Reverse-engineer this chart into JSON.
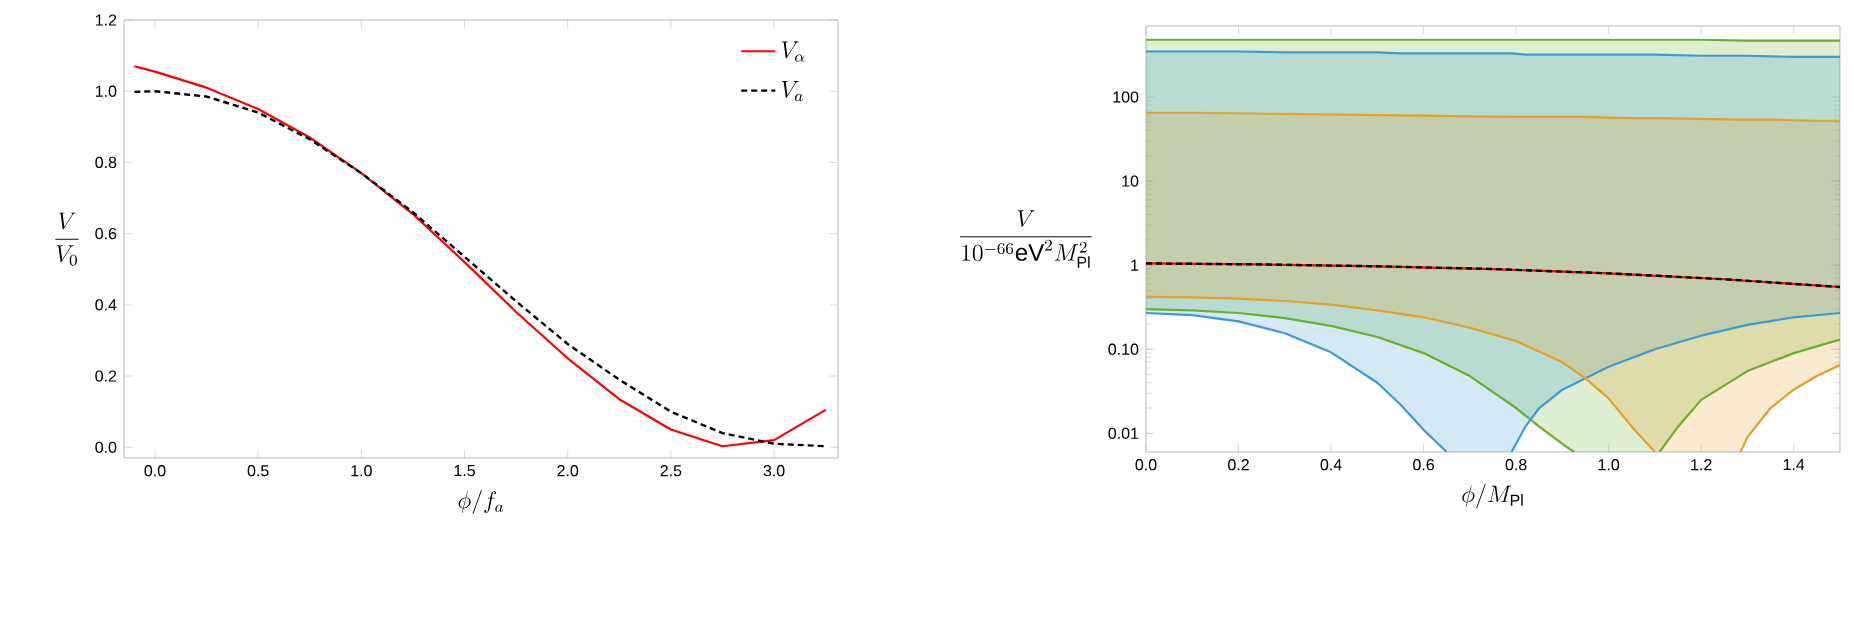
{
  "chart_data": [
    {
      "type": "line",
      "xlabel": "\\phi/f_a",
      "ylabel": "\\frac{V}{V_0}",
      "xlim": [
        -0.15,
        3.31
      ],
      "ylim": [
        -0.03,
        1.2
      ],
      "xticks": [
        {
          "value": 0,
          "label": "0.0"
        },
        {
          "value": 0.5,
          "label": "0.5"
        },
        {
          "value": 1,
          "label": "1.0"
        },
        {
          "value": 1.5,
          "label": "1.5"
        },
        {
          "value": 2,
          "label": "2.0"
        },
        {
          "value": 2.5,
          "label": "2.5"
        },
        {
          "value": 3,
          "label": "3.0"
        }
      ],
      "yticks": [
        {
          "value": 0,
          "label": "0.0"
        },
        {
          "value": 0.2,
          "label": "0.2"
        },
        {
          "value": 0.4,
          "label": "0.4"
        },
        {
          "value": 0.6,
          "label": "0.6"
        },
        {
          "value": 0.8,
          "label": "0.8"
        },
        {
          "value": 1,
          "label": "1.0"
        },
        {
          "value": 1.2,
          "label": "1.2"
        }
      ],
      "x": [
        -0.1,
        0,
        0.25,
        0.5,
        0.75,
        1,
        1.25,
        1.5,
        1.75,
        2,
        2.25,
        2.5,
        2.75,
        3,
        3.25
      ],
      "legend": "top right",
      "series": [
        {
          "name": "V_\\alpha",
          "color": "#ff0000",
          "line_style": "solid",
          "values": [
            1.07,
            1.055,
            1.01,
            0.95,
            0.87,
            0.77,
            0.655,
            0.52,
            0.38,
            0.25,
            0.135,
            0.05,
            0.003,
            0.02,
            0.105
          ]
        },
        {
          "name": "V_a",
          "color": "#000000",
          "line_style": "dashed",
          "values": [
            0.998,
            1.0,
            0.985,
            0.94,
            0.865,
            0.77,
            0.66,
            0.535,
            0.41,
            0.29,
            0.19,
            0.1,
            0.04,
            0.01,
            0.003
          ]
        }
      ]
    },
    {
      "type": "line",
      "xlabel": "\\phi/M_{\\mathrm{Pl}}",
      "ylabel": "\\frac{V}{10^{-66}\\mathrm{eV}^2 M_{\\mathrm{Pl}}^2}",
      "log": "y",
      "xlim": [
        0,
        1.5
      ],
      "ylim": [
        0.006,
        700
      ],
      "xticks": [
        {
          "value": 0,
          "label": "0.0"
        },
        {
          "value": 0.2,
          "label": "0.2"
        },
        {
          "value": 0.4,
          "label": "0.4"
        },
        {
          "value": 0.6,
          "label": "0.6"
        },
        {
          "value": 0.8,
          "label": "0.8"
        },
        {
          "value": 1,
          "label": "1.0"
        },
        {
          "value": 1.2,
          "label": "1.2"
        },
        {
          "value": 1.4,
          "label": "1.4"
        }
      ],
      "yticks": [
        {
          "value": 0.01,
          "label": "0.01"
        },
        {
          "value": 0.1,
          "label": "0.10"
        },
        1,
        10,
        100
      ],
      "series": [
        {
          "color": "#6ab02e",
          "x": [
            0,
            0.1,
            0.2,
            0.3,
            0.4,
            0.5,
            0.6,
            0.7,
            0.8,
            0.85,
            0.9,
            0.925,
            1.11,
            1.15,
            1.2,
            1.3,
            1.4,
            1.5
          ],
          "values": [
            480,
            480,
            480,
            480,
            480,
            480,
            480,
            480,
            480,
            480,
            480,
            480,
            480,
            480,
            480,
            470,
            470,
            470
          ],
          "upper": [
            480,
            480,
            480,
            480,
            480,
            480,
            480,
            480,
            480,
            480,
            480,
            480,
            480,
            480,
            480,
            470,
            470,
            470
          ],
          "lower": [
            0.3,
            0.29,
            0.27,
            0.235,
            0.19,
            0.14,
            0.09,
            0.048,
            0.02,
            0.012,
            0.0075,
            0.006,
            0.006,
            0.012,
            0.025,
            0.055,
            0.09,
            0.13
          ]
        },
        {
          "color": "#3c9bd0",
          "x": [
            0,
            0.1,
            0.2,
            0.3,
            0.4,
            0.5,
            0.55,
            0.6,
            0.65,
            0.79,
            0.82,
            0.85,
            0.9,
            1.0,
            1.1,
            1.2,
            1.3,
            1.4,
            1.5
          ],
          "values": [
            350,
            350,
            350,
            340,
            340,
            340,
            330,
            330,
            330,
            330,
            320,
            320,
            320,
            320,
            320,
            310,
            310,
            300,
            300
          ],
          "upper": [
            350,
            350,
            350,
            340,
            340,
            340,
            330,
            330,
            330,
            330,
            320,
            320,
            320,
            320,
            320,
            310,
            310,
            300,
            300
          ],
          "lower": [
            0.27,
            0.255,
            0.215,
            0.155,
            0.092,
            0.04,
            0.022,
            0.011,
            0.006,
            0.006,
            0.012,
            0.02,
            0.033,
            0.062,
            0.1,
            0.145,
            0.195,
            0.24,
            0.27
          ]
        },
        {
          "color": "#e3a02a",
          "x": [
            0,
            0.1,
            0.2,
            0.3,
            0.4,
            0.5,
            0.6,
            0.7,
            0.8,
            0.9,
            0.95,
            1.0,
            1.05,
            1.1,
            1.285,
            1.3,
            1.35,
            1.4,
            1.45,
            1.5
          ],
          "values": [
            65,
            65,
            64,
            63,
            62,
            61,
            60,
            59,
            58,
            58,
            58,
            57,
            56,
            56,
            54,
            54,
            54,
            53,
            52,
            52
          ],
          "upper": [
            65,
            65,
            64,
            63,
            62,
            61,
            60,
            59,
            58,
            58,
            58,
            57,
            56,
            56,
            54,
            54,
            54,
            53,
            52,
            52
          ],
          "lower": [
            0.42,
            0.415,
            0.4,
            0.375,
            0.34,
            0.29,
            0.24,
            0.18,
            0.125,
            0.07,
            0.045,
            0.026,
            0.012,
            0.006,
            0.006,
            0.009,
            0.02,
            0.033,
            0.048,
            0.065
          ]
        },
        {
          "color": "#6ab02e",
          "x": [
            0,
            0.1,
            0.2,
            0.3,
            0.4,
            0.5,
            0.6,
            0.7,
            0.8,
            0.85,
            0.9,
            0.925
          ],
          "values": [
            0.3,
            0.29,
            0.27,
            0.235,
            0.19,
            0.14,
            0.09,
            0.048,
            0.02,
            0.012,
            0.0075,
            0.006
          ]
        },
        {
          "color": "#6ab02e",
          "x": [
            1.11,
            1.15,
            1.2,
            1.3,
            1.4,
            1.5
          ],
          "values": [
            0.006,
            0.012,
            0.025,
            0.055,
            0.09,
            0.13
          ]
        },
        {
          "color": "#3c9bd0",
          "x": [
            0,
            0.1,
            0.2,
            0.3,
            0.4,
            0.5,
            0.55,
            0.6,
            0.65
          ],
          "values": [
            0.27,
            0.255,
            0.215,
            0.155,
            0.092,
            0.04,
            0.022,
            0.011,
            0.006
          ]
        },
        {
          "color": "#3c9bd0",
          "x": [
            0.79,
            0.82,
            0.85,
            0.9,
            1.0,
            1.1,
            1.2,
            1.3,
            1.4,
            1.5
          ],
          "values": [
            0.006,
            0.012,
            0.02,
            0.033,
            0.062,
            0.1,
            0.145,
            0.195,
            0.24,
            0.27
          ]
        },
        {
          "color": "#e3a02a",
          "x": [
            0,
            0.1,
            0.2,
            0.3,
            0.4,
            0.5,
            0.6,
            0.7,
            0.8,
            0.9,
            0.95,
            1.0,
            1.05,
            1.1
          ],
          "values": [
            0.42,
            0.415,
            0.4,
            0.375,
            0.34,
            0.29,
            0.24,
            0.18,
            0.125,
            0.07,
            0.045,
            0.026,
            0.012,
            0.006
          ]
        },
        {
          "color": "#e3a02a",
          "x": [
            1.285,
            1.3,
            1.35,
            1.4,
            1.45,
            1.5
          ],
          "values": [
            0.006,
            0.009,
            0.02,
            0.033,
            0.048,
            0.065
          ]
        },
        {
          "color": "#ff0000",
          "line_style": "solid",
          "x": [
            0,
            0.25,
            0.5,
            0.75,
            1,
            1.25,
            1.5
          ],
          "values": [
            1.05,
            1.02,
            0.97,
            0.9,
            0.8,
            0.68,
            0.55
          ]
        },
        {
          "color": "#000000",
          "line_style": "dashed",
          "x": [
            0,
            0.25,
            0.5,
            0.75,
            1,
            1.25,
            1.5
          ],
          "values": [
            1.05,
            1.02,
            0.97,
            0.9,
            0.8,
            0.68,
            0.55
          ]
        }
      ]
    }
  ]
}
